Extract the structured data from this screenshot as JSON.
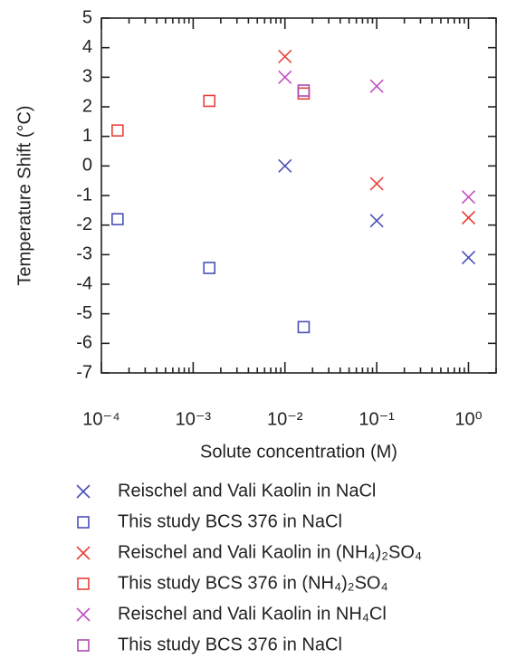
{
  "chart_data": {
    "type": "scatter",
    "x_label": "Solute concentration (M)",
    "y_label": "Temperature Shift (°C)",
    "xscale": "log",
    "xlim": [
      0.0001,
      2
    ],
    "xticks": [
      {
        "value": 0.0001,
        "label": "10⁻⁴"
      },
      {
        "value": 0.001,
        "label": "10⁻³"
      },
      {
        "value": 0.01,
        "label": "10⁻²"
      },
      {
        "value": 0.1,
        "label": "10⁻¹"
      },
      {
        "value": 1,
        "label": "10⁰"
      }
    ],
    "ylim": [
      -7,
      5
    ],
    "yticks": [
      -7,
      -6,
      -5,
      -4,
      -3,
      -2,
      -1,
      0,
      1,
      2,
      3,
      4,
      5
    ],
    "legend": "bottom",
    "series": [
      {
        "name": "Reischel and Vali Kaolin in NaCl",
        "color": "#4a4fb8",
        "marker": "x",
        "x": [
          0.01,
          0.1,
          1
        ],
        "values": [
          0,
          -1.85,
          -3.1
        ]
      },
      {
        "name": "This study BCS 376 in NaCl",
        "color": "#4a4fb8",
        "marker": "square",
        "x": [
          0.00015,
          0.0015,
          0.016
        ],
        "values": [
          -1.8,
          -3.45,
          -5.45
        ]
      },
      {
        "name": "Reischel and Vali Kaolin in (NH₄)₂SO₄",
        "color": "#e8413a",
        "marker": "x",
        "x": [
          0.01,
          0.1,
          1
        ],
        "values": [
          3.7,
          -0.6,
          -1.75
        ]
      },
      {
        "name": "This study BCS 376 in (NH₄)₂SO₄",
        "color": "#e8413a",
        "marker": "square",
        "x": [
          0.00015,
          0.0015,
          0.016
        ],
        "values": [
          1.2,
          2.2,
          2.45
        ]
      },
      {
        "name": "Reischel and Vali Kaolin in NH₄Cl",
        "color": "#c050c0",
        "marker": "x",
        "x": [
          0.01,
          0.1,
          1
        ],
        "values": [
          3.0,
          2.7,
          -1.05
        ]
      },
      {
        "name": "This study BCS 376 in NaCl",
        "color": "#b04ab0",
        "marker": "square",
        "x": [
          0.016
        ],
        "values": [
          2.55
        ]
      }
    ]
  }
}
